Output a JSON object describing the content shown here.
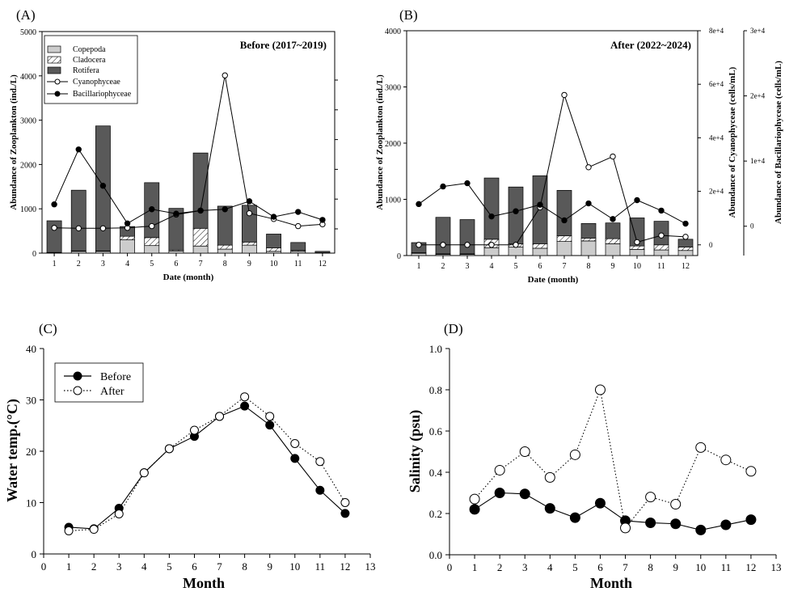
{
  "chart_data": [
    {
      "panel": "(A)",
      "type": "bar",
      "title": "Before (2017~2019)",
      "xlabel": "Date (month)",
      "ylabel": "Abundance of Zooplankton (ind./L)",
      "ylim": [
        0,
        5000
      ],
      "yticks": [
        "0",
        "1000",
        "2000",
        "3000",
        "4000",
        "5000"
      ],
      "categories": [
        "1",
        "2",
        "3",
        "4",
        "5",
        "6",
        "7",
        "8",
        "9",
        "10",
        "11",
        "12"
      ],
      "stacked_series": [
        {
          "name": "Copepoda",
          "color": "#cccccc",
          "values": [
            10,
            40,
            40,
            300,
            170,
            50,
            160,
            90,
            180,
            40,
            40,
            5
          ]
        },
        {
          "name": "Cladocera",
          "color": "hatched",
          "values": [
            5,
            10,
            10,
            80,
            180,
            20,
            400,
            90,
            70,
            80,
            20,
            5
          ]
        },
        {
          "name": "Rotifera",
          "color": "#595959",
          "values": [
            715,
            1370,
            2820,
            220,
            1240,
            940,
            1700,
            880,
            830,
            310,
            180,
            30
          ]
        }
      ],
      "line_series": [
        {
          "name": "Cyanophyceae",
          "marker": "open-circle",
          "values": [
            570,
            560,
            560,
            570,
            610,
            870,
            960,
            4010,
            900,
            770,
            610,
            650
          ]
        },
        {
          "name": "Bacillariophyceae",
          "marker": "filled-circle",
          "values": [
            1100,
            2340,
            1520,
            670,
            990,
            890,
            960,
            990,
            1170,
            820,
            930,
            750
          ]
        }
      ],
      "legend_position": "top-left"
    },
    {
      "panel": "(B)",
      "type": "bar",
      "title": "After (2022~2024)",
      "xlabel": "Date (month)",
      "ylabel": "Abundance of Zooplankton (ind./L)",
      "ylabel_right1": "Abundance of Cyanophyceae (cells/mL)",
      "ylabel_right2": "Abundance of Bacillariophyceae (cells/mL)",
      "ylim": [
        0,
        4000
      ],
      "yticks": [
        "0",
        "1000",
        "2000",
        "3000",
        "4000"
      ],
      "y2ticks": [
        "0",
        "2e+4",
        "4e+4",
        "6e+4",
        "8e+4"
      ],
      "y2lim": [
        -4000,
        80000
      ],
      "y3ticks": [
        "0",
        "1e+4",
        "2e+4",
        "3e+4"
      ],
      "y3lim": [
        -4500,
        30000
      ],
      "categories": [
        "1",
        "2",
        "3",
        "4",
        "5",
        "6",
        "7",
        "8",
        "9",
        "10",
        "11",
        "12"
      ],
      "stacked_series": [
        {
          "name": "Copepoda",
          "color": "#cccccc",
          "values": [
            40,
            20,
            20,
            140,
            150,
            130,
            250,
            260,
            210,
            110,
            100,
            90
          ]
        },
        {
          "name": "Cladocera",
          "color": "hatched",
          "values": [
            10,
            10,
            10,
            150,
            60,
            80,
            100,
            50,
            90,
            60,
            90,
            60
          ]
        },
        {
          "name": "Rotifera",
          "color": "#595959",
          "values": [
            180,
            650,
            610,
            1090,
            1010,
            1210,
            810,
            260,
            280,
            500,
            420,
            140
          ]
        }
      ],
      "line_series": [
        {
          "name": "Cyanophyceae",
          "marker": "open-circle",
          "values": [
            0,
            0,
            0,
            0,
            0,
            14000,
            56000,
            29000,
            33000,
            1000,
            3500,
            3000
          ]
        },
        {
          "name": "Bacillariophyceae",
          "marker": "filled-circle",
          "values": [
            3400,
            6100,
            6600,
            1500,
            2300,
            3300,
            900,
            3500,
            1100,
            4000,
            2400,
            400
          ]
        }
      ]
    },
    {
      "panel": "(C)",
      "type": "line",
      "xlabel": "Month",
      "ylabel": "Water temp.(°C)",
      "xlim": [
        0,
        13
      ],
      "ylim": [
        0,
        40
      ],
      "xticks": [
        "0",
        "1",
        "2",
        "3",
        "4",
        "5",
        "6",
        "7",
        "8",
        "9",
        "10",
        "11",
        "12",
        "13"
      ],
      "yticks": [
        "0",
        "10",
        "20",
        "30",
        "40"
      ],
      "x": [
        1,
        2,
        3,
        4,
        5,
        6,
        7,
        8,
        9,
        10,
        11,
        12
      ],
      "series": [
        {
          "name": "Before",
          "style": "solid",
          "marker": "filled-circle",
          "values": [
            5.2,
            4.9,
            8.9,
            15.8,
            20.5,
            22.9,
            26.8,
            28.8,
            25.1,
            18.6,
            12.4,
            7.9
          ]
        },
        {
          "name": "After",
          "style": "dotted",
          "marker": "open-circle",
          "values": [
            4.5,
            4.8,
            7.8,
            15.8,
            20.5,
            24.1,
            26.8,
            30.6,
            26.8,
            21.5,
            18.0,
            10.0
          ]
        }
      ],
      "legend_position": "top-left"
    },
    {
      "panel": "(D)",
      "type": "line",
      "xlabel": "Month",
      "ylabel": "Salinity (psu)",
      "xlim": [
        0,
        13
      ],
      "ylim": [
        0.0,
        1.0
      ],
      "xticks": [
        "0",
        "1",
        "2",
        "3",
        "4",
        "5",
        "6",
        "7",
        "8",
        "9",
        "10",
        "11",
        "12",
        "13"
      ],
      "yticks": [
        "0.0",
        "0.2",
        "0.4",
        "0.6",
        "0.8",
        "1.0"
      ],
      "x": [
        1,
        2,
        3,
        4,
        5,
        6,
        7,
        8,
        9,
        10,
        11,
        12
      ],
      "series": [
        {
          "name": "Before",
          "style": "solid",
          "marker": "filled-circle",
          "values": [
            0.22,
            0.3,
            0.295,
            0.225,
            0.18,
            0.25,
            0.165,
            0.155,
            0.15,
            0.12,
            0.145,
            0.17
          ]
        },
        {
          "name": "After",
          "style": "dotted",
          "marker": "open-circle",
          "values": [
            0.27,
            0.41,
            0.5,
            0.375,
            0.485,
            0.8,
            0.13,
            0.28,
            0.245,
            0.52,
            0.46,
            0.405
          ]
        }
      ]
    }
  ]
}
